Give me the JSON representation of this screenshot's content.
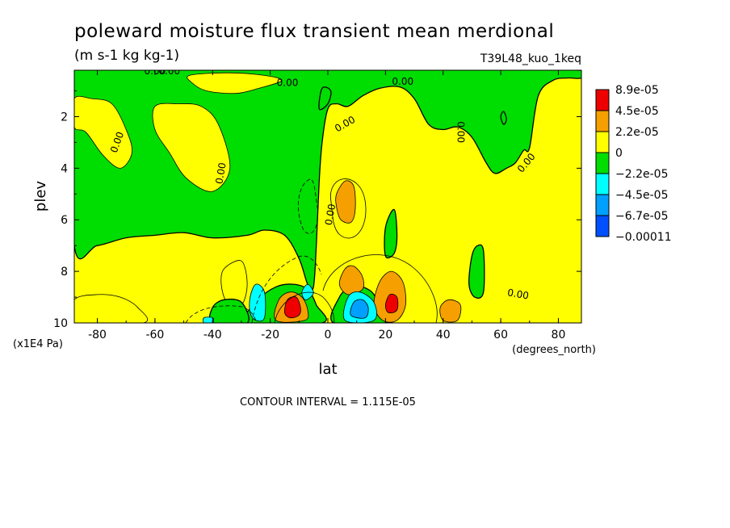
{
  "chart_data": {
    "type": "heatmap",
    "title": "poleward moisture flux transient mean merdional",
    "units": "(m s-1 kg kg-1)",
    "experiment": "T39L48_kuo_1keq",
    "xlabel": "lat",
    "x_units": "(degrees_north)",
    "ylabel": "plev",
    "y_units": "(x1E4 Pa)",
    "xlim": [
      -88,
      88
    ],
    "ylim": [
      10,
      0.2
    ],
    "x_ticks": [
      "-80",
      "-60",
      "-40",
      "-20",
      "0",
      "20",
      "40",
      "60",
      "80"
    ],
    "y_ticks": [
      "2",
      "4",
      "6",
      "8",
      "10"
    ],
    "contour_interval_text": "CONTOUR INTERVAL = 1.115E-05",
    "contour_labels": [
      "0.00",
      "0.00",
      "0.00",
      "0.00",
      "0.00",
      "0.00",
      "0.00",
      "0.00",
      "0.00",
      "0.00",
      "0.00"
    ],
    "colorbar": {
      "labels": [
        "8.9e-05",
        "4.5e-05",
        "2.2e-05",
        "0",
        "−2.2e-05",
        "−4.5e-05",
        "−6.7e-05",
        "−0.00011"
      ],
      "colors": [
        "#ee0000",
        "#f5a000",
        "#ffff00",
        "#00dd00",
        "#00ffff",
        "#00a0ff",
        "#0050ff"
      ]
    },
    "background_color": "#ffff00",
    "negative_regions_color": "#00dd00",
    "regions": [
      {
        "level": "negative",
        "color": "#00dd00",
        "points": [
          [
            -88,
            0.2
          ],
          [
            -88,
            7
          ],
          [
            -80,
            7
          ],
          [
            -70,
            6.7
          ],
          [
            -60,
            6.6
          ],
          [
            -50,
            6.5
          ],
          [
            -40,
            6.7
          ],
          [
            -28,
            6.6
          ],
          [
            -22,
            6.4
          ],
          [
            -15,
            6.6
          ],
          [
            -10,
            7.5
          ],
          [
            -7,
            8.5
          ],
          [
            -5,
            8.6
          ],
          [
            -4,
            7
          ],
          [
            -3,
            4.5
          ],
          [
            -2,
            3
          ],
          [
            0,
            1.7
          ],
          [
            3,
            1.5
          ],
          [
            7,
            1.6
          ],
          [
            12,
            1.2
          ],
          [
            18,
            0.9
          ],
          [
            25,
            0.85
          ],
          [
            30,
            1.3
          ],
          [
            35,
            2.3
          ],
          [
            40,
            2.5
          ],
          [
            45,
            2.4
          ],
          [
            50,
            2.8
          ],
          [
            55,
            3.8
          ],
          [
            58,
            4.2
          ],
          [
            62,
            4.0
          ],
          [
            65,
            3.8
          ],
          [
            68,
            3.3
          ],
          [
            70,
            3.2
          ],
          [
            73,
            1.2
          ],
          [
            78,
            0.6
          ],
          [
            83,
            0.5
          ],
          [
            88,
            0.5
          ],
          [
            88,
            0.2
          ]
        ]
      },
      {
        "level": "positive",
        "color": "#ffff00",
        "points": [
          [
            -88,
            1.3
          ],
          [
            -82,
            1.3
          ],
          [
            -75,
            1.5
          ],
          [
            -70,
            2.5
          ],
          [
            -68,
            3.4
          ],
          [
            -72,
            4
          ],
          [
            -78,
            3.5
          ],
          [
            -84,
            2.6
          ],
          [
            -88,
            2.4
          ]
        ]
      },
      {
        "level": "positive",
        "color": "#ffff00",
        "points": [
          [
            -60,
            1.6
          ],
          [
            -52,
            1.5
          ],
          [
            -44,
            1.6
          ],
          [
            -38,
            2.3
          ],
          [
            -34,
            4
          ],
          [
            -40,
            4.9
          ],
          [
            -49,
            4.4
          ],
          [
            -55,
            3.4
          ],
          [
            -60,
            2.5
          ]
        ]
      },
      {
        "level": "positive",
        "color": "#ffff00",
        "points": [
          [
            -48,
            0.4
          ],
          [
            -35,
            0.3
          ],
          [
            -22,
            0.4
          ],
          [
            -16,
            0.6
          ],
          [
            -24,
            0.9
          ],
          [
            -32,
            1.1
          ],
          [
            -42,
            1.0
          ],
          [
            -47,
            0.7
          ]
        ]
      },
      {
        "level": "positive",
        "color": "#ffff00",
        "points": [
          [
            -36,
            7.9
          ],
          [
            -30,
            7.6
          ],
          [
            -28,
            8.5
          ],
          [
            -30,
            9.3
          ],
          [
            -35,
            9.2
          ],
          [
            -37,
            8.5
          ]
        ]
      },
      {
        "level": "positive",
        "color": "#ffff00",
        "points": [
          [
            -88,
            9.1
          ],
          [
            -80,
            8.9
          ],
          [
            -72,
            9.0
          ],
          [
            -66,
            9.4
          ],
          [
            -64,
            10
          ],
          [
            -88,
            10
          ]
        ]
      },
      {
        "level": "negative",
        "color": "#00dd00",
        "points": [
          [
            -28,
            10
          ],
          [
            -24,
            9.1
          ],
          [
            -18,
            8.6
          ],
          [
            -12,
            8.5
          ],
          [
            -7,
            8.7
          ],
          [
            -4,
            9.3
          ],
          [
            -2,
            10
          ]
        ]
      },
      {
        "level": "negative",
        "color": "#00dd00",
        "points": [
          [
            2,
            10
          ],
          [
            4,
            9.0
          ],
          [
            8,
            8.6
          ],
          [
            12,
            8.6
          ],
          [
            16,
            8.9
          ],
          [
            18,
            9.6
          ],
          [
            20,
            10
          ]
        ]
      },
      {
        "level": "negative",
        "color": "#00dd00",
        "points": [
          [
            -40,
            9.4
          ],
          [
            -36,
            9.1
          ],
          [
            -30,
            9.2
          ],
          [
            -28,
            10
          ],
          [
            -40,
            10
          ]
        ]
      },
      {
        "level": "negative",
        "color": "#00dd00",
        "points": [
          [
            20,
            6.3
          ],
          [
            23,
            5.6
          ],
          [
            24,
            6.6
          ],
          [
            23,
            7.3
          ],
          [
            20,
            7.4
          ]
        ]
      },
      {
        "level": "negative",
        "color": "#00dd00",
        "points": [
          [
            50,
            7.4
          ],
          [
            52,
            7.0
          ],
          [
            54,
            7.2
          ],
          [
            54,
            8.8
          ],
          [
            51,
            9.0
          ],
          [
            49,
            8.5
          ]
        ]
      },
      {
        "level": "negative",
        "color": "#00dd00",
        "points": [
          [
            -3,
            1.7
          ],
          [
            -2,
            0.9
          ],
          [
            1,
            1.0
          ],
          [
            0,
            1.5
          ]
        ]
      },
      {
        "level": "negative",
        "color": "#00dd00",
        "points": [
          [
            60,
            2.0
          ],
          [
            61,
            1.8
          ],
          [
            62,
            2.1
          ],
          [
            61,
            2.3
          ]
        ]
      },
      {
        "level": "level_2.2e-05",
        "color": "#f5a000",
        "points": [
          [
            3,
            5.0
          ],
          [
            6,
            4.5
          ],
          [
            9,
            4.7
          ],
          [
            9.5,
            5.6
          ],
          [
            8,
            6.1
          ],
          [
            4.5,
            6.0
          ],
          [
            3,
            5.5
          ]
        ]
      },
      {
        "level": "level_2.2e-05",
        "color": "#f5a000",
        "points": [
          [
            4,
            8.5
          ],
          [
            6,
            7.9
          ],
          [
            9,
            7.8
          ],
          [
            12,
            8.2
          ],
          [
            12,
            8.7
          ],
          [
            7,
            8.9
          ]
        ]
      },
      {
        "level": "level_2.2e-05",
        "color": "#f5a000",
        "points": [
          [
            16,
            9.3
          ],
          [
            18,
            8.4
          ],
          [
            22,
            8.0
          ],
          [
            26,
            8.4
          ],
          [
            27,
            9.3
          ],
          [
            24,
            9.9
          ],
          [
            19,
            9.9
          ]
        ]
      },
      {
        "level": "level_2.2e-05",
        "color": "#f5a000",
        "points": [
          [
            -18,
            9.9
          ],
          [
            -17,
            9.1
          ],
          [
            -13,
            8.8
          ],
          [
            -9,
            9.0
          ],
          [
            -7,
            9.5
          ],
          [
            -8,
            9.9
          ]
        ]
      },
      {
        "level": "level_2.2e-05",
        "color": "#f5a000",
        "points": [
          [
            39,
            9.4
          ],
          [
            42,
            9.1
          ],
          [
            46,
            9.3
          ],
          [
            45,
            9.9
          ],
          [
            40,
            9.9
          ]
        ]
      },
      {
        "level": "level_4.5e-05",
        "color": "#ee0000",
        "points": [
          [
            -15,
            9.6
          ],
          [
            -14,
            9.1
          ],
          [
            -11,
            9.0
          ],
          [
            -9.5,
            9.4
          ],
          [
            -10,
            9.7
          ],
          [
            -13,
            9.8
          ]
        ]
      },
      {
        "level": "level_4.5e-05",
        "color": "#ee0000",
        "points": [
          [
            20,
            9.3
          ],
          [
            21.5,
            8.9
          ],
          [
            24,
            9.0
          ],
          [
            24,
            9.5
          ],
          [
            21,
            9.6
          ]
        ]
      },
      {
        "level": "level_-2.2e-05",
        "color": "#00ffff",
        "points": [
          [
            -27,
            9.0
          ],
          [
            -25,
            8.5
          ],
          [
            -22,
            8.8
          ],
          [
            -22,
            9.8
          ],
          [
            -25,
            9.9
          ],
          [
            -27,
            9.6
          ]
        ]
      },
      {
        "level": "level_-2.2e-05",
        "color": "#00ffff",
        "points": [
          [
            -9,
            8.8
          ],
          [
            -7,
            8.5
          ],
          [
            -5,
            8.8
          ],
          [
            -6,
            9.0
          ],
          [
            -8,
            9.1
          ]
        ]
      },
      {
        "level": "level_-2.2e-05",
        "color": "#00ffff",
        "points": [
          [
            6,
            9.9
          ],
          [
            7,
            9.0
          ],
          [
            11,
            8.8
          ],
          [
            16,
            9.2
          ],
          [
            16,
            9.9
          ]
        ]
      },
      {
        "level": "level_-2.2e-05",
        "color": "#00ffff",
        "points": [
          [
            -43,
            9.8
          ],
          [
            -40,
            9.8
          ],
          [
            -40,
            10
          ],
          [
            -43,
            10
          ]
        ]
      },
      {
        "level": "level_-4.5e-05",
        "color": "#00a0ff",
        "points": [
          [
            8,
            9.7
          ],
          [
            9,
            9.2
          ],
          [
            12,
            9.1
          ],
          [
            14,
            9.4
          ],
          [
            13,
            9.8
          ]
        ]
      }
    ]
  }
}
